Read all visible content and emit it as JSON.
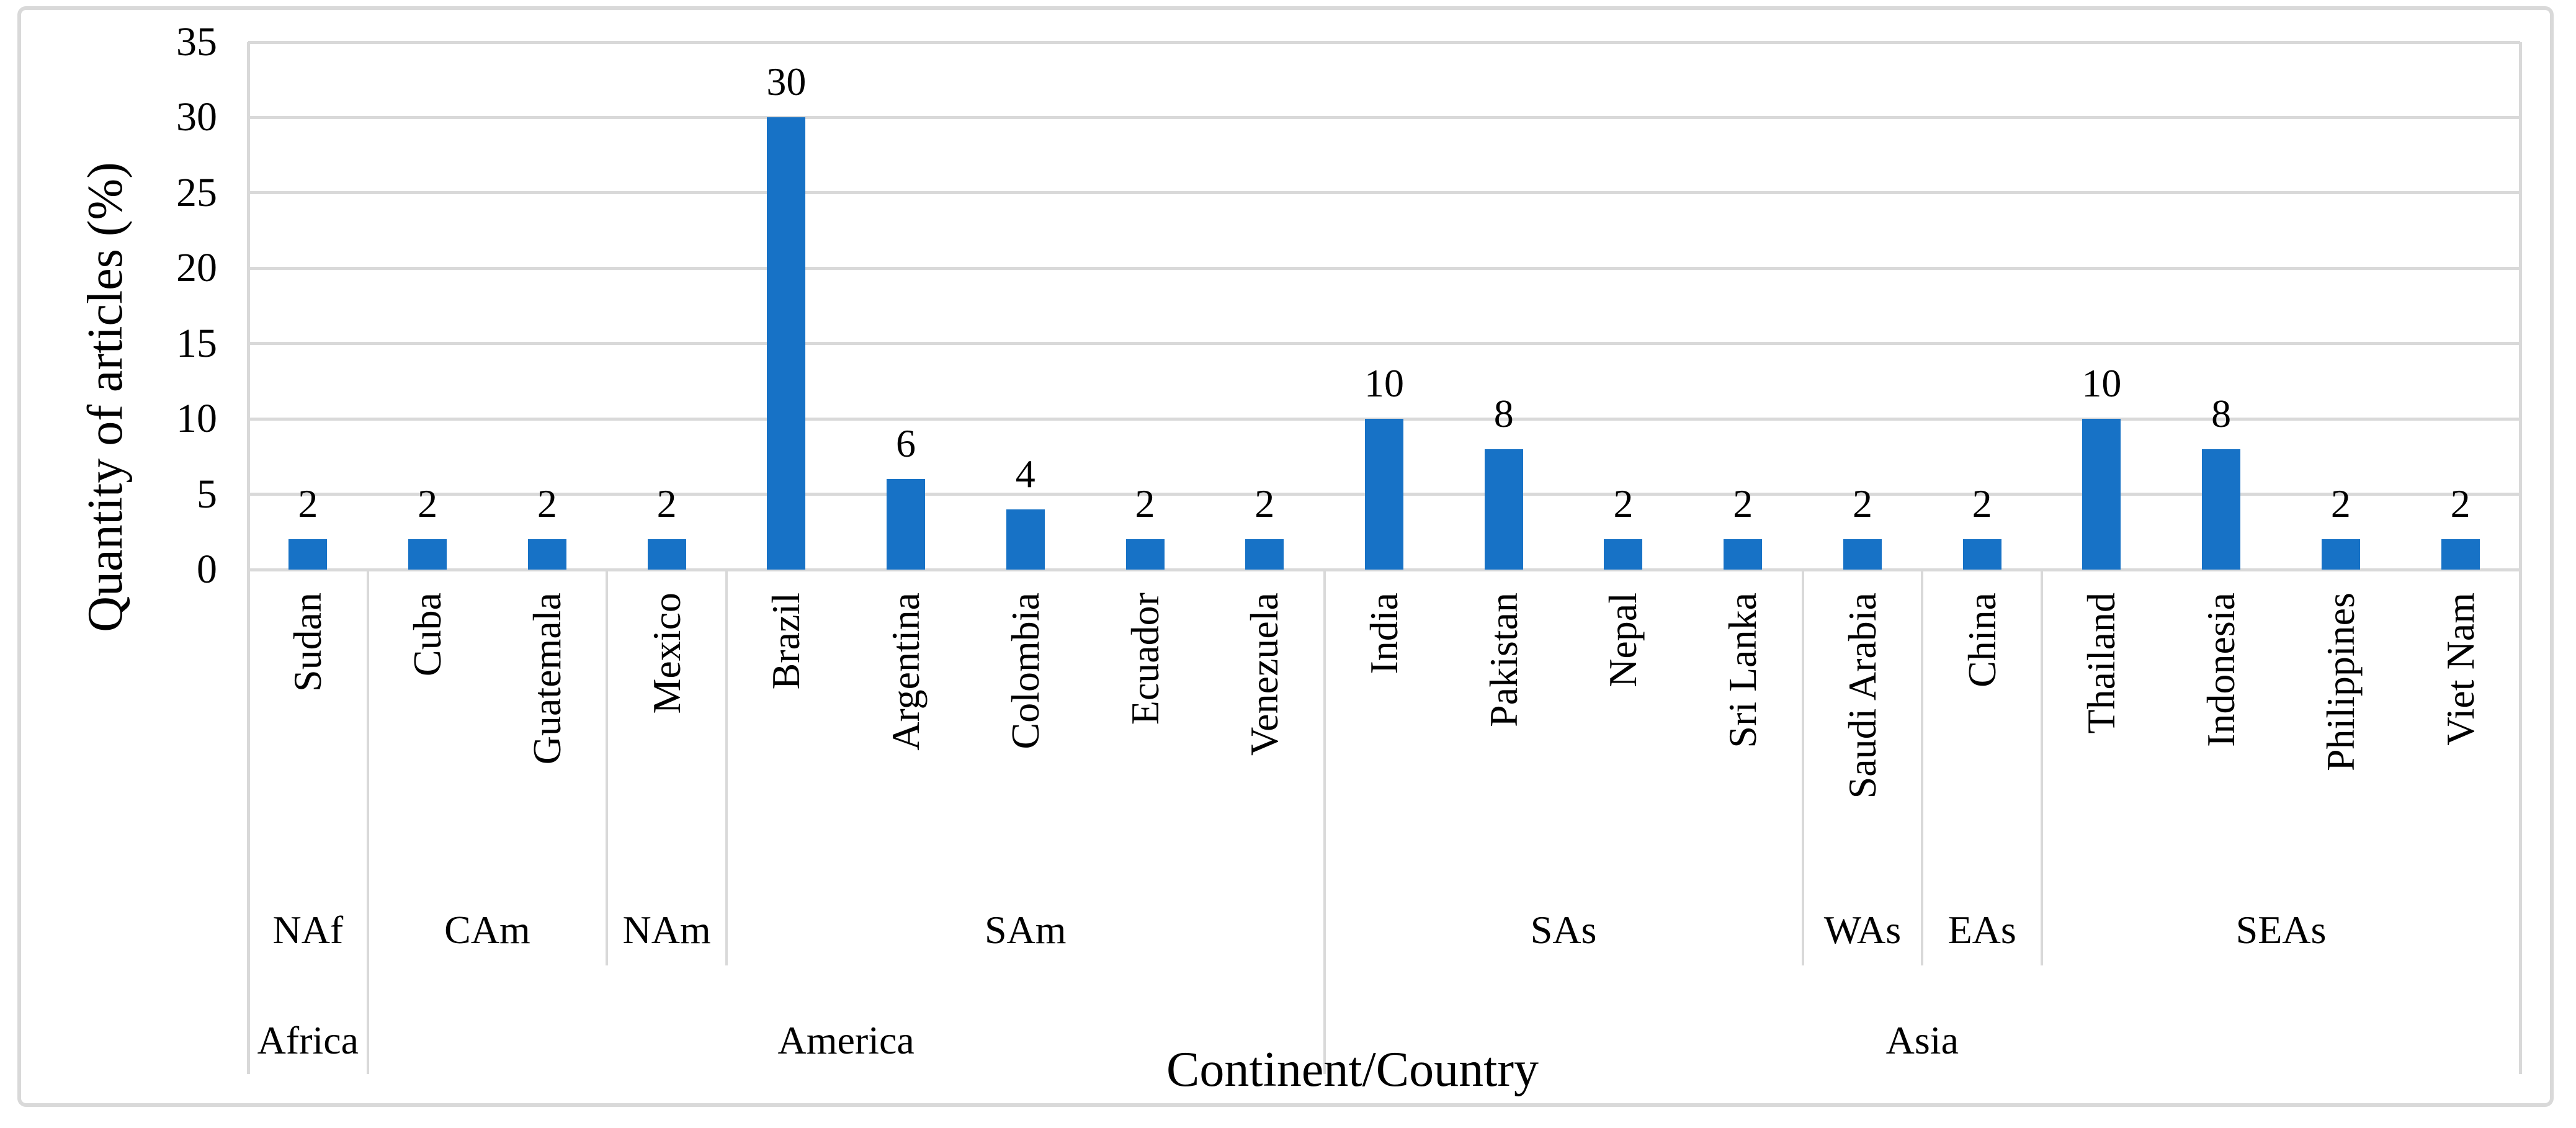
{
  "chart_data": {
    "type": "bar",
    "title": "",
    "xlabel": "Continent/Country",
    "ylabel": "Quantity of articles (%)",
    "ylim": [
      0,
      35
    ],
    "ytick_step": 5,
    "yticks": [
      0,
      5,
      10,
      15,
      20,
      25,
      30,
      35
    ],
    "grid": true,
    "value_labels": true,
    "legend": "none",
    "bar_color": "#1772c6",
    "grid_color": "#d9d9d9",
    "categories": [
      "Sudan",
      "Cuba",
      "Guatemala",
      "Mexico",
      "Brazil",
      "Argentina",
      "Colombia",
      "Ecuador",
      "Venezuela",
      "India",
      "Pakistan",
      "Nepal",
      "Sri Lanka",
      "Saudi Arabia",
      "China",
      "Thailand",
      "Indonesia",
      "Philippines",
      "Viet Nam"
    ],
    "values": [
      2,
      2,
      2,
      2,
      30,
      6,
      4,
      2,
      2,
      10,
      8,
      2,
      2,
      2,
      2,
      10,
      8,
      2,
      2
    ],
    "continents": [
      {
        "name": "Africa",
        "regions": [
          {
            "name": "NAf",
            "countries": [
              {
                "country": "Sudan",
                "value": 2
              }
            ]
          }
        ]
      },
      {
        "name": "America",
        "regions": [
          {
            "name": "CAm",
            "countries": [
              {
                "country": "Cuba",
                "value": 2
              },
              {
                "country": "Guatemala",
                "value": 2
              }
            ]
          },
          {
            "name": "NAm",
            "countries": [
              {
                "country": "Mexico",
                "value": 2
              }
            ]
          },
          {
            "name": "SAm",
            "countries": [
              {
                "country": "Brazil",
                "value": 30
              },
              {
                "country": "Argentina",
                "value": 6
              },
              {
                "country": "Colombia",
                "value": 4
              },
              {
                "country": "Ecuador",
                "value": 2
              },
              {
                "country": "Venezuela",
                "value": 2
              }
            ]
          }
        ]
      },
      {
        "name": "Asia",
        "regions": [
          {
            "name": "SAs",
            "countries": [
              {
                "country": "India",
                "value": 10
              },
              {
                "country": "Pakistan",
                "value": 8
              },
              {
                "country": "Nepal",
                "value": 2
              },
              {
                "country": "Sri Lanka",
                "value": 2
              }
            ]
          },
          {
            "name": "WAs",
            "countries": [
              {
                "country": "Saudi Arabia",
                "value": 2
              }
            ]
          },
          {
            "name": "EAs",
            "countries": [
              {
                "country": "China",
                "value": 2
              }
            ]
          },
          {
            "name": "SEAs",
            "countries": [
              {
                "country": "Thailand",
                "value": 10
              },
              {
                "country": "Indonesia",
                "value": 8
              },
              {
                "country": "Philippines",
                "value": 2
              },
              {
                "country": "Viet Nam",
                "value": 2
              }
            ]
          }
        ]
      }
    ]
  }
}
